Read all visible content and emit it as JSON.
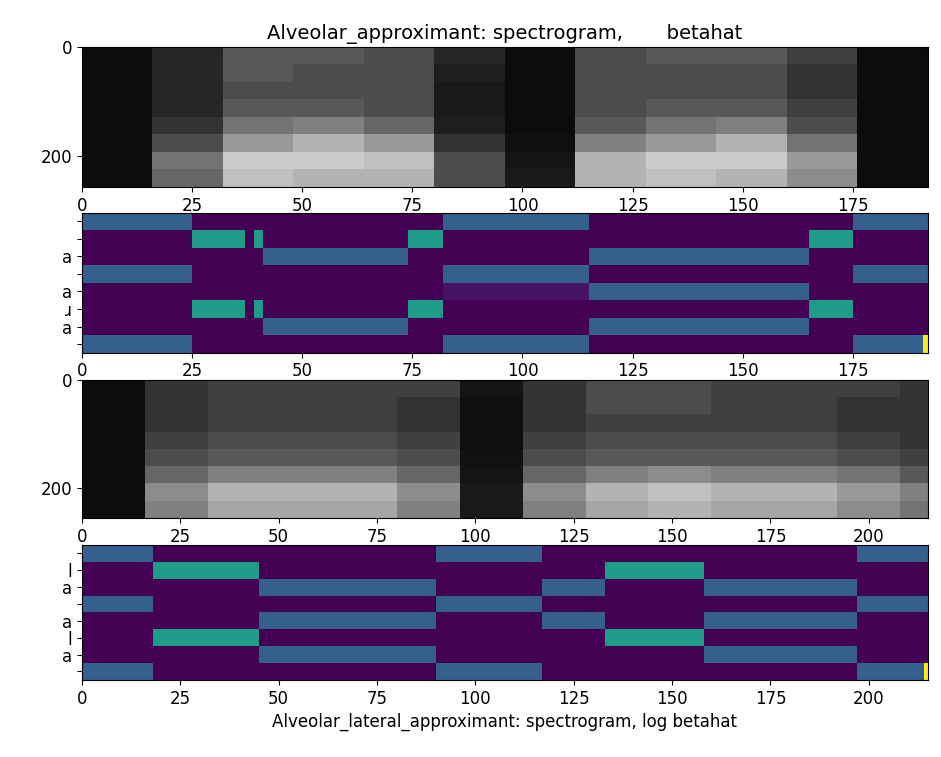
{
  "chart_data": [
    {
      "type": "heatmap",
      "title": "Alveolar_approximant: spectrogram,       betahat",
      "color": "gray",
      "x_edges": [
        0,
        16,
        32,
        48,
        64,
        80,
        96,
        112,
        128,
        144,
        160,
        176,
        192
      ],
      "y_edges": [
        0,
        32,
        64,
        96,
        128,
        160,
        192,
        224,
        256
      ],
      "cells": [
        [
          0.05,
          0.15,
          0.35,
          0.35,
          0.3,
          0.15,
          0.05,
          0.3,
          0.35,
          0.35,
          0.25,
          0.05
        ],
        [
          0.05,
          0.15,
          0.35,
          0.3,
          0.3,
          0.12,
          0.05,
          0.3,
          0.3,
          0.3,
          0.2,
          0.05
        ],
        [
          0.05,
          0.15,
          0.3,
          0.3,
          0.3,
          0.1,
          0.05,
          0.3,
          0.3,
          0.3,
          0.2,
          0.05
        ],
        [
          0.05,
          0.15,
          0.35,
          0.35,
          0.3,
          0.1,
          0.05,
          0.3,
          0.35,
          0.35,
          0.25,
          0.05
        ],
        [
          0.05,
          0.2,
          0.45,
          0.5,
          0.4,
          0.12,
          0.05,
          0.35,
          0.45,
          0.5,
          0.3,
          0.05
        ],
        [
          0.05,
          0.3,
          0.6,
          0.7,
          0.6,
          0.2,
          0.06,
          0.5,
          0.6,
          0.7,
          0.45,
          0.05
        ],
        [
          0.05,
          0.45,
          0.8,
          0.8,
          0.75,
          0.3,
          0.08,
          0.7,
          0.8,
          0.8,
          0.6,
          0.05
        ],
        [
          0.05,
          0.4,
          0.75,
          0.7,
          0.7,
          0.3,
          0.1,
          0.7,
          0.75,
          0.7,
          0.55,
          0.05
        ]
      ],
      "zlim": [
        0,
        1
      ],
      "xlim": [
        0,
        192
      ],
      "ylim": [
        256,
        0
      ],
      "xticks": [
        0,
        25,
        50,
        75,
        100,
        125,
        150,
        175
      ],
      "yticks": [
        0,
        200
      ]
    },
    {
      "type": "heatmap",
      "color": "viridis",
      "categories": [
        null,
        null,
        "a",
        null,
        "a",
        "ɹ",
        "a",
        null
      ],
      "values": [
        [
          [
            0,
            25,
            0.3
          ],
          [
            82,
            115,
            0.3
          ],
          [
            175,
            192,
            0.3
          ]
        ],
        [
          [
            25,
            37,
            0.55
          ],
          [
            39,
            41,
            0.55
          ],
          [
            74,
            82,
            0.55
          ],
          [
            165,
            175,
            0.55
          ]
        ],
        [
          [
            41,
            74,
            0.3
          ],
          [
            115,
            165,
            0.3
          ]
        ],
        [
          [
            0,
            25,
            0.3
          ],
          [
            82,
            115,
            0.3
          ],
          [
            175,
            192,
            0.3
          ]
        ],
        [
          [
            82,
            115,
            0.05
          ],
          [
            115,
            165,
            0.3
          ]
        ],
        [
          [
            25,
            37,
            0.55
          ],
          [
            39,
            41,
            0.55
          ],
          [
            74,
            82,
            0.55
          ],
          [
            165,
            175,
            0.55
          ]
        ],
        [
          [
            41,
            74,
            0.3
          ],
          [
            115,
            165,
            0.3
          ]
        ],
        [
          [
            0,
            25,
            0.3
          ],
          [
            82,
            115,
            0.3
          ],
          [
            175,
            191,
            0.3
          ],
          [
            191,
            192,
            1
          ]
        ]
      ],
      "zlim": [
        0,
        1
      ],
      "xlim": [
        0,
        192
      ],
      "ylim": [
        7.5,
        -0.5
      ],
      "xticks": [
        0,
        25,
        50,
        75,
        100,
        125,
        150,
        175
      ]
    },
    {
      "type": "heatmap",
      "color": "gray",
      "x_edges": [
        0,
        16,
        32,
        48,
        64,
        80,
        96,
        112,
        128,
        144,
        160,
        176,
        192,
        208,
        215
      ],
      "y_edges": [
        0,
        32,
        64,
        96,
        128,
        160,
        192,
        224,
        256
      ],
      "cells": [
        [
          0.05,
          0.2,
          0.25,
          0.25,
          0.25,
          0.25,
          0.08,
          0.2,
          0.3,
          0.3,
          0.25,
          0.25,
          0.25,
          0.2
        ],
        [
          0.05,
          0.2,
          0.25,
          0.25,
          0.25,
          0.2,
          0.06,
          0.2,
          0.3,
          0.3,
          0.25,
          0.25,
          0.2,
          0.2
        ],
        [
          0.05,
          0.2,
          0.25,
          0.25,
          0.25,
          0.2,
          0.06,
          0.2,
          0.25,
          0.25,
          0.25,
          0.25,
          0.2,
          0.2
        ],
        [
          0.05,
          0.25,
          0.3,
          0.3,
          0.3,
          0.25,
          0.06,
          0.25,
          0.3,
          0.3,
          0.3,
          0.3,
          0.25,
          0.2
        ],
        [
          0.05,
          0.3,
          0.35,
          0.35,
          0.35,
          0.3,
          0.07,
          0.3,
          0.35,
          0.35,
          0.35,
          0.35,
          0.3,
          0.25
        ],
        [
          0.05,
          0.4,
          0.5,
          0.5,
          0.5,
          0.4,
          0.08,
          0.4,
          0.5,
          0.55,
          0.5,
          0.5,
          0.45,
          0.35
        ],
        [
          0.05,
          0.55,
          0.7,
          0.7,
          0.7,
          0.55,
          0.1,
          0.55,
          0.7,
          0.75,
          0.7,
          0.7,
          0.6,
          0.5
        ],
        [
          0.05,
          0.5,
          0.65,
          0.65,
          0.65,
          0.5,
          0.1,
          0.5,
          0.65,
          0.7,
          0.65,
          0.65,
          0.55,
          0.45
        ]
      ],
      "zlim": [
        0,
        1
      ],
      "xlim": [
        0,
        215
      ],
      "ylim": [
        256,
        0
      ],
      "xticks": [
        0,
        25,
        50,
        75,
        100,
        125,
        150,
        175,
        200
      ],
      "yticks": [
        0,
        200
      ]
    },
    {
      "type": "heatmap",
      "color": "viridis",
      "x_label": "Alveolar_lateral_approximant: spectrogram, log betahat",
      "categories": [
        null,
        "l",
        "a",
        null,
        "a",
        "l",
        "a",
        null
      ],
      "values": [
        [
          [
            0,
            18,
            0.3
          ],
          [
            90,
            117,
            0.3
          ],
          [
            197,
            215,
            0.3
          ]
        ],
        [
          [
            18,
            45,
            0.55
          ],
          [
            133,
            158,
            0.55
          ]
        ],
        [
          [
            45,
            90,
            0.3
          ],
          [
            117,
            133,
            0.3
          ],
          [
            158,
            197,
            0.3
          ]
        ],
        [
          [
            0,
            18,
            0.3
          ],
          [
            90,
            117,
            0.3
          ],
          [
            197,
            215,
            0.3
          ]
        ],
        [
          [
            45,
            90,
            0.3
          ],
          [
            117,
            133,
            0.3
          ],
          [
            158,
            197,
            0.3
          ]
        ],
        [
          [
            18,
            45,
            0.55
          ],
          [
            133,
            158,
            0.55
          ]
        ],
        [
          [
            45,
            90,
            0.3
          ],
          [
            158,
            197,
            0.3
          ]
        ],
        [
          [
            0,
            18,
            0.3
          ],
          [
            90,
            117,
            0.3
          ],
          [
            197,
            214,
            0.3
          ],
          [
            214,
            215,
            1
          ]
        ]
      ],
      "zlim": [
        0,
        1
      ],
      "xlim": [
        0,
        215
      ],
      "ylim": [
        7.5,
        -0.5
      ],
      "xticks": [
        0,
        25,
        50,
        75,
        100,
        125,
        150,
        175,
        200
      ]
    }
  ]
}
